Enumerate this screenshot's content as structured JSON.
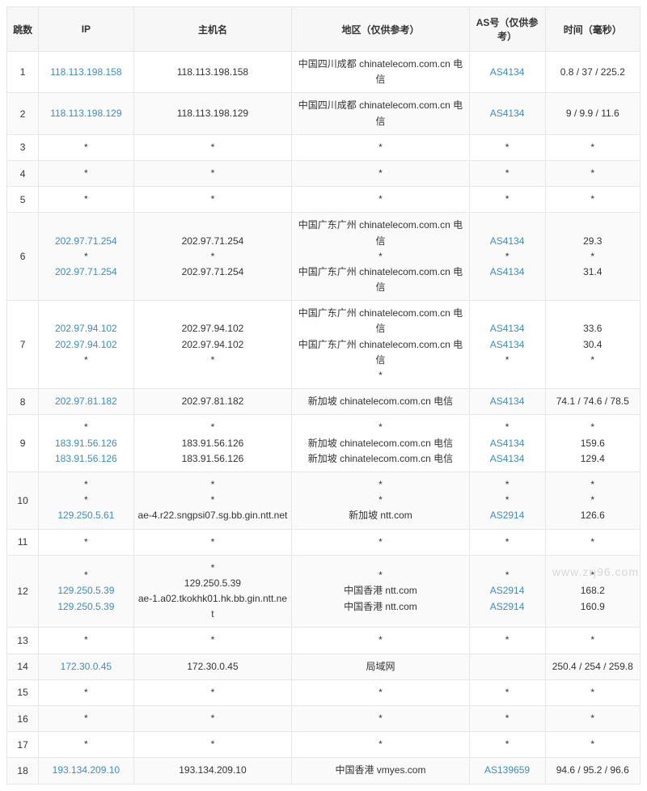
{
  "columns": {
    "hop": "跳数",
    "ip": "IP",
    "host": "主机名",
    "region": "地区（仅供参考）",
    "as": "AS号（仅供参考）",
    "time": "时间（毫秒）"
  },
  "rows": [
    {
      "hop": "1",
      "lines": [
        {
          "ip": "118.113.198.158",
          "ip_link": true,
          "host": "118.113.198.158",
          "region": "中国四川成都 chinatelecom.com.cn 电信",
          "as": "AS4134",
          "as_link": true,
          "time": "0.8 / 37 / 225.2"
        }
      ]
    },
    {
      "hop": "2",
      "lines": [
        {
          "ip": "118.113.198.129",
          "ip_link": true,
          "host": "118.113.198.129",
          "region": "中国四川成都 chinatelecom.com.cn 电信",
          "as": "AS4134",
          "as_link": true,
          "time": "9 / 9.9 / 11.6"
        }
      ]
    },
    {
      "hop": "3",
      "lines": [
        {
          "ip": "*",
          "host": "*",
          "region": "*",
          "as": "*",
          "time": "*"
        }
      ]
    },
    {
      "hop": "4",
      "lines": [
        {
          "ip": "*",
          "host": "*",
          "region": "*",
          "as": "*",
          "time": "*"
        }
      ]
    },
    {
      "hop": "5",
      "lines": [
        {
          "ip": "*",
          "host": "*",
          "region": "*",
          "as": "*",
          "time": "*"
        }
      ]
    },
    {
      "hop": "6",
      "lines": [
        {
          "ip": "202.97.71.254",
          "ip_link": true,
          "host": "202.97.71.254",
          "region": "中国广东广州 chinatelecom.com.cn 电信",
          "as": "AS4134",
          "as_link": true,
          "time": "29.3"
        },
        {
          "ip": "*",
          "host": "*",
          "region": "*",
          "as": "*",
          "time": "*"
        },
        {
          "ip": "202.97.71.254",
          "ip_link": true,
          "host": "202.97.71.254",
          "region": "中国广东广州 chinatelecom.com.cn 电信",
          "as": "AS4134",
          "as_link": true,
          "time": "31.4"
        }
      ]
    },
    {
      "hop": "7",
      "lines": [
        {
          "ip": "202.97.94.102",
          "ip_link": true,
          "host": "202.97.94.102",
          "region": "中国广东广州 chinatelecom.com.cn 电信",
          "as": "AS4134",
          "as_link": true,
          "time": "33.6"
        },
        {
          "ip": "202.97.94.102",
          "ip_link": true,
          "host": "202.97.94.102",
          "region": "中国广东广州 chinatelecom.com.cn 电信",
          "as": "AS4134",
          "as_link": true,
          "time": "30.4"
        },
        {
          "ip": "*",
          "host": "*",
          "region": "*",
          "as": "*",
          "time": "*"
        }
      ]
    },
    {
      "hop": "8",
      "lines": [
        {
          "ip": "202.97.81.182",
          "ip_link": true,
          "host": "202.97.81.182",
          "region": "新加坡 chinatelecom.com.cn 电信",
          "as": "AS4134",
          "as_link": true,
          "time": "74.1 / 74.6 / 78.5"
        }
      ]
    },
    {
      "hop": "9",
      "lines": [
        {
          "ip": "*",
          "host": "*",
          "region": "*",
          "as": "*",
          "time": "*"
        },
        {
          "ip": "183.91.56.126",
          "ip_link": true,
          "host": "183.91.56.126",
          "region": "新加坡 chinatelecom.com.cn 电信",
          "as": "AS4134",
          "as_link": true,
          "time": "159.6"
        },
        {
          "ip": "183.91.56.126",
          "ip_link": true,
          "host": "183.91.56.126",
          "region": "新加坡 chinatelecom.com.cn 电信",
          "as": "AS4134",
          "as_link": true,
          "time": "129.4"
        }
      ]
    },
    {
      "hop": "10",
      "lines": [
        {
          "ip": "*",
          "host": "*",
          "region": "*",
          "as": "*",
          "time": "*"
        },
        {
          "ip": "*",
          "host": "*",
          "region": "*",
          "as": "*",
          "time": "*"
        },
        {
          "ip": "129.250.5.61",
          "ip_link": true,
          "host": "ae-4.r22.sngpsi07.sg.bb.gin.ntt.net",
          "region": "新加坡 ntt.com",
          "as": "AS2914",
          "as_link": true,
          "time": "126.6"
        }
      ]
    },
    {
      "hop": "11",
      "lines": [
        {
          "ip": "*",
          "host": "*",
          "region": "*",
          "as": "*",
          "time": "*"
        }
      ]
    },
    {
      "hop": "12",
      "lines": [
        {
          "ip": "*",
          "host": "*",
          "region": "*",
          "as": "*",
          "time": "*"
        },
        {
          "ip": "129.250.5.39",
          "ip_link": true,
          "host": "129.250.5.39",
          "region": "中国香港 ntt.com",
          "as": "AS2914",
          "as_link": true,
          "time": "168.2"
        },
        {
          "ip": "129.250.5.39",
          "ip_link": true,
          "host": "ae-1.a02.tkokhk01.hk.bb.gin.ntt.net",
          "region": "中国香港 ntt.com",
          "as": "AS2914",
          "as_link": true,
          "time": "160.9"
        }
      ]
    },
    {
      "hop": "13",
      "lines": [
        {
          "ip": "*",
          "host": "*",
          "region": "*",
          "as": "*",
          "time": "*"
        }
      ]
    },
    {
      "hop": "14",
      "lines": [
        {
          "ip": "172.30.0.45",
          "ip_link": true,
          "host": "172.30.0.45",
          "region": "局域网",
          "as": "",
          "time": "250.4 / 254 / 259.8"
        }
      ]
    },
    {
      "hop": "15",
      "lines": [
        {
          "ip": "*",
          "host": "*",
          "region": "*",
          "as": "*",
          "time": "*"
        }
      ]
    },
    {
      "hop": "16",
      "lines": [
        {
          "ip": "*",
          "host": "*",
          "region": "*",
          "as": "*",
          "time": "*"
        }
      ]
    },
    {
      "hop": "17",
      "lines": [
        {
          "ip": "*",
          "host": "*",
          "region": "*",
          "as": "*",
          "time": "*"
        }
      ]
    },
    {
      "hop": "18",
      "lines": [
        {
          "ip": "193.134.209.10",
          "ip_link": true,
          "host": "193.134.209.10",
          "region": "中国香港 vmyes.com",
          "as": "AS139659",
          "as_link": true,
          "time": "94.6 / 95.2 / 96.6"
        }
      ]
    }
  ],
  "watermark": "www.zrj96.com"
}
